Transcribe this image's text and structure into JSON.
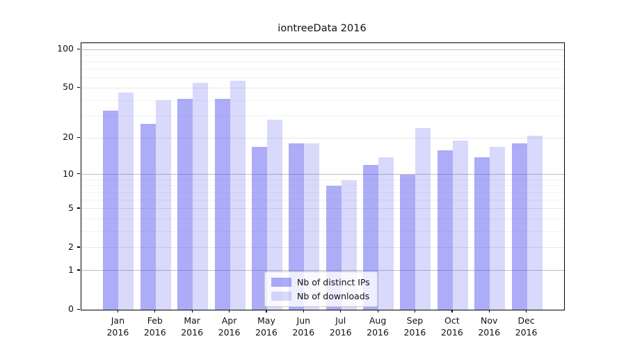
{
  "chart_data": {
    "type": "bar",
    "title": "iontreeData 2016",
    "y_scale": "log10(value+1)",
    "categories": [
      "Jan",
      "Feb",
      "Mar",
      "Apr",
      "May",
      "Jun",
      "Jul",
      "Aug",
      "Sep",
      "Oct",
      "Nov",
      "Dec"
    ],
    "year_label": "2016",
    "series": [
      {
        "name": "Nb of distinct IPs",
        "color": "rgba(82,82,238,0.48)",
        "values": [
          33,
          26,
          41,
          41,
          17,
          18,
          8,
          12,
          10,
          16,
          14,
          18
        ]
      },
      {
        "name": "Nb of downloads",
        "color": "rgba(82,82,238,0.22)",
        "values": [
          46,
          40,
          55,
          57,
          28,
          18,
          9,
          14,
          24,
          19,
          17,
          21
        ]
      }
    ],
    "y_ticks": [
      0,
      1,
      2,
      5,
      10,
      20,
      50,
      100
    ],
    "y_major_gridlines": [
      1,
      2,
      5,
      10,
      20,
      50,
      100
    ],
    "y_emphasized_gridlines": [
      1,
      10,
      100
    ],
    "y_minor_gridlines": [
      3,
      4,
      6,
      7,
      8,
      9,
      30,
      40,
      60,
      70,
      80,
      90
    ],
    "y_axis_top_value": 112,
    "ylim": [
      0,
      112
    ],
    "grid": true,
    "legend_position": "lower center"
  },
  "colors": {
    "bar_distinct_ips": "rgba(82,82,238,0.48)",
    "bar_downloads": "rgba(82,82,238,0.22)",
    "grid_minor": "#f3f3f3",
    "grid_major": "#e7e7e7",
    "grid_emphasis": "#bdbdbd",
    "spine": "#000000",
    "text": "#111111"
  }
}
